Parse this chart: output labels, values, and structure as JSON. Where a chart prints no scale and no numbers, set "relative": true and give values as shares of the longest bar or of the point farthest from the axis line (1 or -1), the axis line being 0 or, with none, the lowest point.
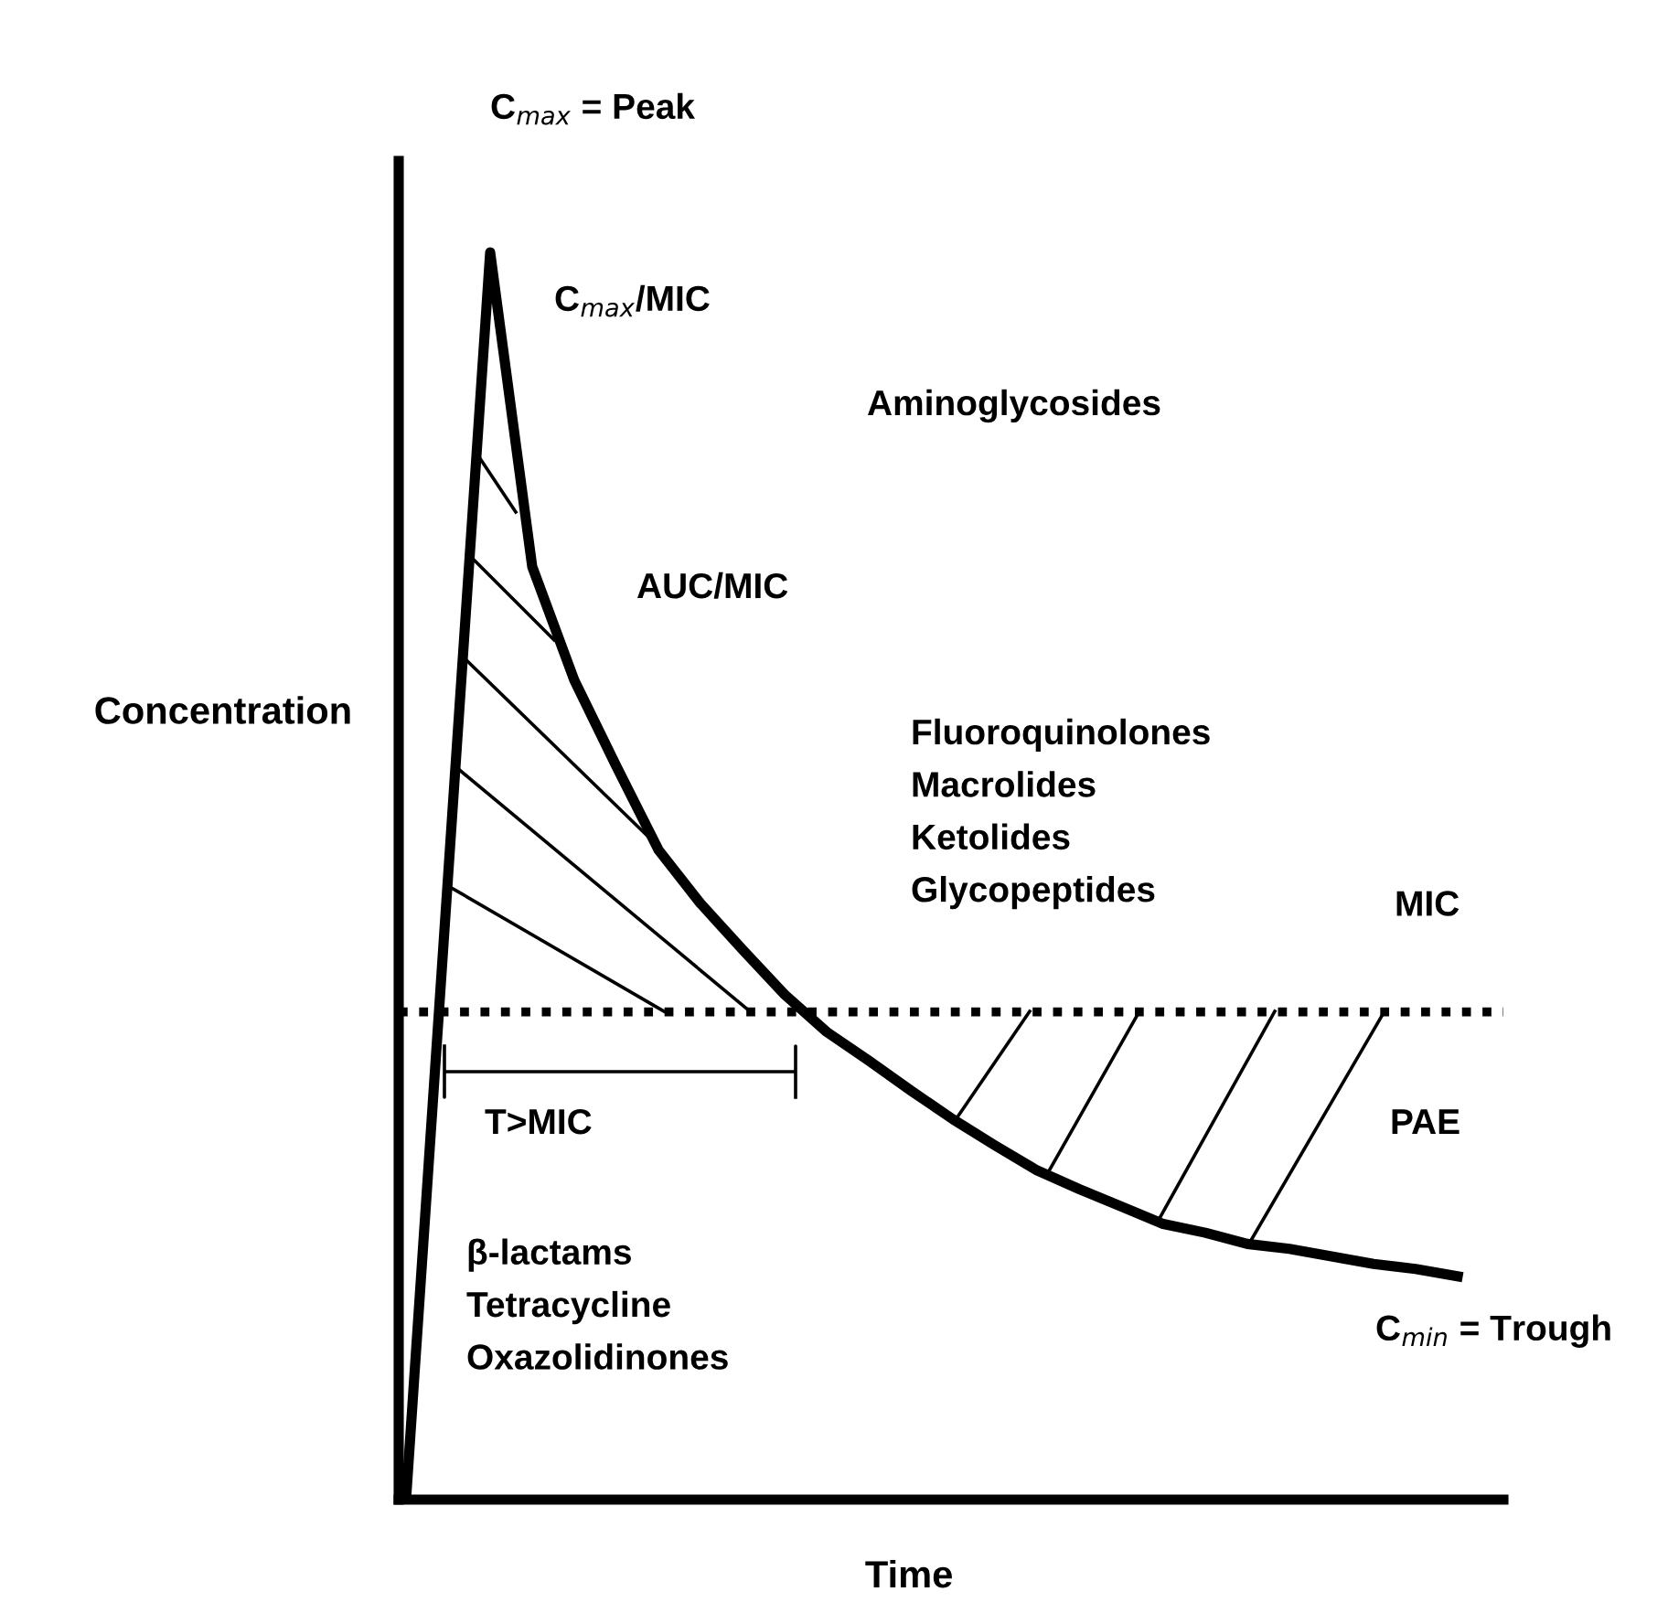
{
  "chart_data": {
    "type": "line",
    "relative": true,
    "xlabel": "Time",
    "ylabel": "Concentration",
    "marker": "none",
    "line_style": "solid",
    "categories": [
      null,
      null,
      null,
      null,
      null,
      null,
      null,
      null,
      null,
      null,
      null,
      null,
      null,
      null,
      null,
      null,
      null,
      null,
      null,
      null,
      null,
      null,
      null,
      null,
      null,
      null
    ],
    "series": [
      {
        "color": "#000000",
        "values": [
          0,
          0.5,
          1.0,
          0.748,
          0.657,
          0.588,
          0.521,
          0.478,
          0.441,
          0.405,
          0.375,
          0.352,
          0.328,
          0.305,
          0.284,
          0.264,
          0.249,
          0.235,
          0.221,
          0.214,
          0.205,
          0.201,
          0.195,
          0.189,
          0.185,
          0.179
        ]
      }
    ],
    "ref_lines": [
      {
        "axis": "y",
        "value": 0.391,
        "label": "MIC",
        "color": "#000000",
        "line_style": "dotted"
      }
    ],
    "annotations": [
      "C$_{max}$ = Peak",
      "C$_{max}$/MIC",
      "Aminoglycosides",
      "AUC/MIC",
      "Fluoroquinolones\nMacrolides\nKetolides\nGlycopeptides",
      "T>MIC",
      "PAE",
      "β-lactams\nTetracycline\nOxazolidinones",
      "C$_{min}$ = Trough"
    ]
  }
}
